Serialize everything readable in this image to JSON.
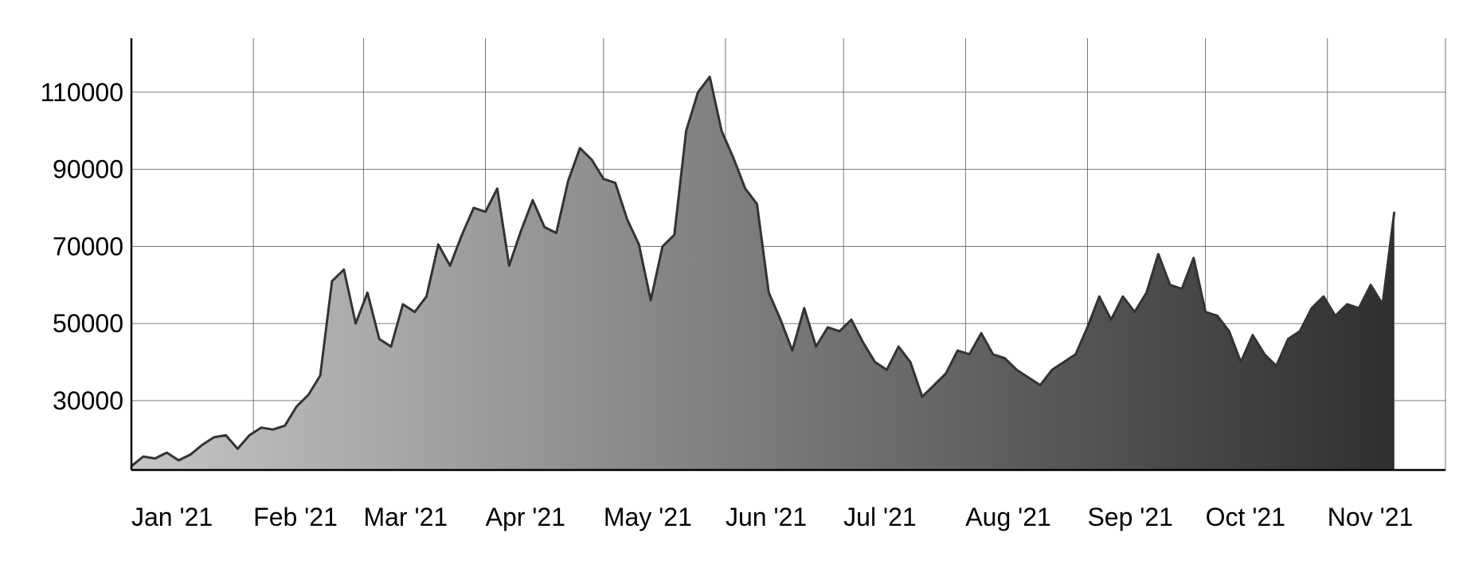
{
  "chart_data": {
    "type": "area",
    "title": "",
    "xlabel": "",
    "ylabel": "",
    "grid": true,
    "legend": "none",
    "x_ticks": [
      "Jan '21",
      "Feb '21",
      "Mar '21",
      "Apr '21",
      "May '21",
      "Jun '21",
      "Jul '21",
      "Aug '21",
      "Sep '21",
      "Oct '21",
      "Nov '21"
    ],
    "y_ticks": [
      30000,
      50000,
      70000,
      90000,
      110000
    ],
    "ylim": [
      12000,
      124000
    ],
    "gradient_colors": [
      "#c6c6c6",
      "#2f2f2f"
    ],
    "line_color": "#333333",
    "series": [
      {
        "x": [
          "2021-01-01",
          "2021-01-04",
          "2021-01-07",
          "2021-01-10",
          "2021-01-13",
          "2021-01-16",
          "2021-01-19",
          "2021-01-22",
          "2021-01-25",
          "2021-01-28",
          "2021-01-31",
          "2021-02-03",
          "2021-02-06",
          "2021-02-09",
          "2021-02-12",
          "2021-02-15",
          "2021-02-18",
          "2021-02-21",
          "2021-02-24",
          "2021-02-27",
          "2021-03-02",
          "2021-03-05",
          "2021-03-08",
          "2021-03-11",
          "2021-03-14",
          "2021-03-17",
          "2021-03-20",
          "2021-03-23",
          "2021-03-26",
          "2021-03-29",
          "2021-04-01",
          "2021-04-04",
          "2021-04-07",
          "2021-04-10",
          "2021-04-13",
          "2021-04-16",
          "2021-04-19",
          "2021-04-22",
          "2021-04-25",
          "2021-04-28",
          "2021-05-01",
          "2021-05-04",
          "2021-05-07",
          "2021-05-10",
          "2021-05-13",
          "2021-05-16",
          "2021-05-19",
          "2021-05-22",
          "2021-05-25",
          "2021-05-28",
          "2021-05-31",
          "2021-06-03",
          "2021-06-06",
          "2021-06-09",
          "2021-06-12",
          "2021-06-15",
          "2021-06-18",
          "2021-06-21",
          "2021-06-24",
          "2021-06-27",
          "2021-06-30",
          "2021-07-03",
          "2021-07-06",
          "2021-07-09",
          "2021-07-12",
          "2021-07-15",
          "2021-07-18",
          "2021-07-21",
          "2021-07-24",
          "2021-07-27",
          "2021-07-30",
          "2021-08-02",
          "2021-08-05",
          "2021-08-08",
          "2021-08-11",
          "2021-08-14",
          "2021-08-17",
          "2021-08-20",
          "2021-08-23",
          "2021-08-26",
          "2021-08-29",
          "2021-09-01",
          "2021-09-04",
          "2021-09-07",
          "2021-09-10",
          "2021-09-13",
          "2021-09-16",
          "2021-09-19",
          "2021-09-22",
          "2021-09-25",
          "2021-09-28",
          "2021-10-01",
          "2021-10-04",
          "2021-10-07",
          "2021-10-10",
          "2021-10-13",
          "2021-10-16",
          "2021-10-19",
          "2021-10-22",
          "2021-10-25",
          "2021-10-28",
          "2021-10-31",
          "2021-11-03",
          "2021-11-06",
          "2021-11-09",
          "2021-11-12",
          "2021-11-15",
          "2021-11-18"
        ],
        "y": [
          13000,
          15500,
          15000,
          16500,
          14500,
          16000,
          18500,
          20500,
          21000,
          17500,
          21000,
          23000,
          22500,
          23500,
          28500,
          31500,
          36500,
          61000,
          64000,
          50000,
          58000,
          46000,
          44000,
          55000,
          53000,
          57000,
          70500,
          65000,
          73000,
          80000,
          79000,
          85000,
          65000,
          74000,
          82000,
          75000,
          73500,
          87000,
          95500,
          92500,
          87500,
          86500,
          77000,
          70500,
          56000,
          70000,
          73000,
          100000,
          110000,
          114000,
          100000,
          93000,
          85000,
          81000,
          58000,
          51000,
          43000,
          54000,
          44000,
          49000,
          48000,
          51000,
          45000,
          40000,
          38000,
          44000,
          40000,
          31000,
          34000,
          37000,
          43000,
          42000,
          47500,
          42000,
          41000,
          38000,
          36000,
          34000,
          38000,
          40000,
          42000,
          49000,
          57000,
          51000,
          57000,
          53000,
          58000,
          68000,
          60000,
          59000,
          67000,
          53000,
          52000,
          48000,
          40000,
          47000,
          42000,
          39000,
          46000,
          48000,
          54000,
          57000,
          52000,
          55000,
          54000,
          60000,
          55000,
          79000
        ]
      }
    ]
  }
}
